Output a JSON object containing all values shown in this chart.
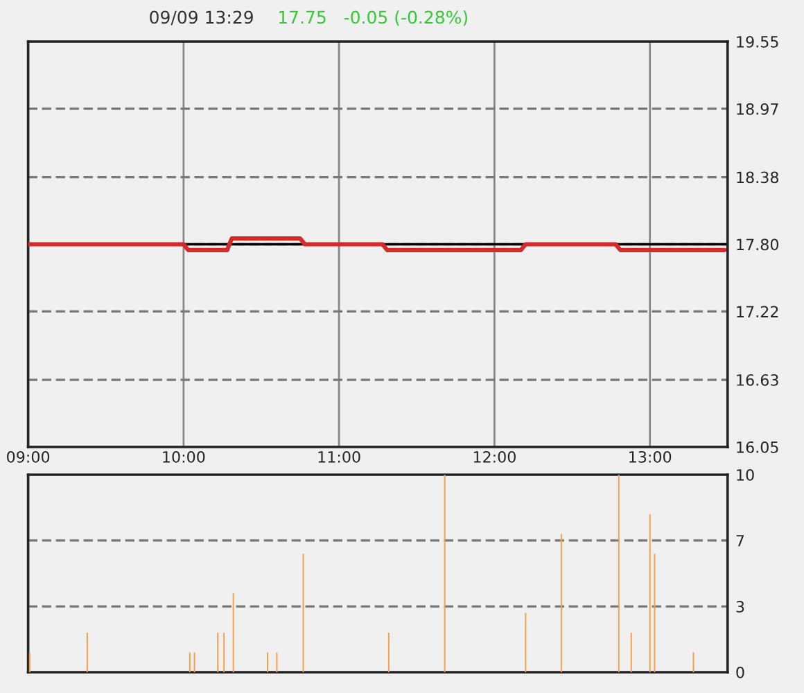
{
  "chart_data": [
    {
      "type": "line",
      "title": "09/09 13:29",
      "subtitle": "17.75   -0.05 (-0.28%)",
      "xlim": [
        9,
        13.5
      ],
      "xticks": [
        {
          "value": 9,
          "label": "09:00"
        },
        {
          "value": 10,
          "label": "10:00"
        },
        {
          "value": 11,
          "label": "11:00"
        },
        {
          "value": 12,
          "label": "12:00"
        },
        {
          "value": 13,
          "label": "13:00"
        }
      ],
      "ylim": [
        16.05,
        19.55
      ],
      "yticks": [
        16.05,
        16.63,
        17.22,
        {
          "value": 17.8,
          "label": "17.80"
        },
        18.38,
        18.97,
        19.55
      ],
      "ref_lines": [
        {
          "axis": "y",
          "value": 17.8,
          "color": "#000000",
          "line_style": "solid"
        }
      ],
      "grid": true,
      "legend": false,
      "series": [
        {
          "color": "#d42a2a",
          "x": [
            9,
            10,
            10.03,
            10.28,
            10.31,
            10.75,
            10.78,
            11.28,
            11.31,
            12.17,
            12.2,
            12.78,
            12.81,
            13.48
          ],
          "values": [
            17.8,
            17.8,
            17.75,
            17.75,
            17.85,
            17.85,
            17.8,
            17.8,
            17.75,
            17.75,
            17.8,
            17.8,
            17.75,
            17.75
          ]
        }
      ]
    },
    {
      "type": "bar",
      "xlim": [
        9,
        13.5
      ],
      "ylim": [
        0,
        10
      ],
      "yticks": [
        0,
        {
          "value": 3.33,
          "label": "3"
        },
        {
          "value": 6.67,
          "label": "7"
        },
        10
      ],
      "tick_labels": "y",
      "grid": "y",
      "legend": false,
      "series": [
        {
          "color": "#f5a04a",
          "x": [
            9.01,
            9.38,
            10.04,
            10.07,
            10.22,
            10.26,
            10.32,
            10.54,
            10.6,
            10.77,
            11.32,
            11.68,
            12.2,
            12.43,
            12.8,
            12.88,
            13.0,
            13.03,
            13.28
          ],
          "values": [
            1,
            2,
            1,
            1,
            2,
            2,
            4,
            1,
            1,
            6,
            2,
            10,
            3,
            7,
            10,
            2,
            8,
            6,
            1
          ]
        }
      ]
    }
  ]
}
